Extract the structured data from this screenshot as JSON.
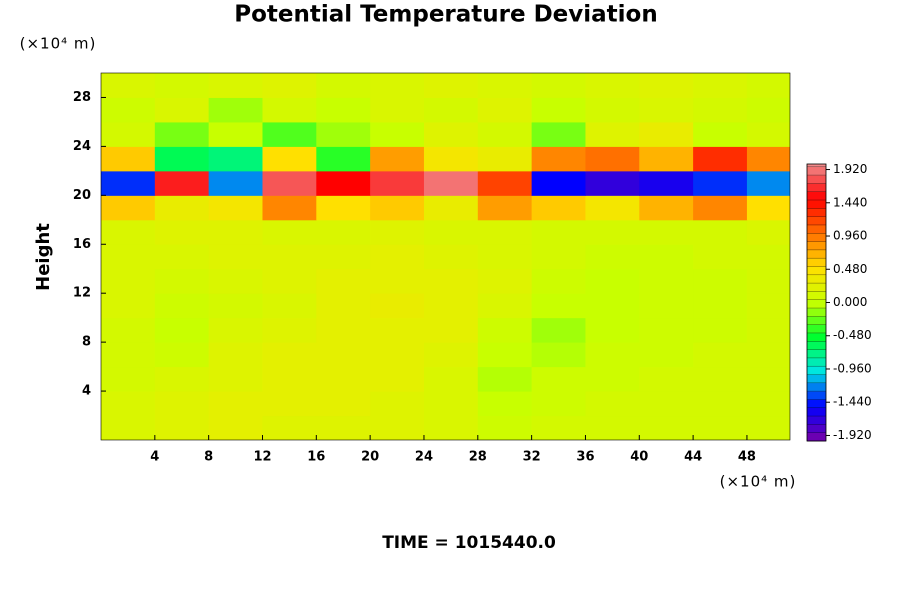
{
  "chart_data": {
    "type": "heatmap",
    "title": "Potential Temperature Deviation",
    "y_unit": "(×10⁴ m)",
    "x_unit": "(×10⁴ m)",
    "y_label": "Height",
    "footer": "TIME = 1015440.0",
    "x": [
      2,
      6,
      10,
      14,
      18,
      22,
      26,
      30,
      34,
      38,
      42,
      46,
      50
    ],
    "y": [
      1,
      3,
      5,
      7,
      9,
      11,
      13,
      15,
      17,
      19,
      21,
      23,
      25,
      27,
      29
    ],
    "z": [
      [
        0.15,
        0.2,
        0.25,
        0.2,
        0.2,
        0.2,
        0.15,
        0.05,
        0.1,
        0.1,
        0.1,
        0.1,
        0.1
      ],
      [
        0.15,
        0.2,
        0.25,
        0.25,
        0.25,
        0.2,
        0.15,
        0.0,
        0.05,
        0.1,
        0.1,
        0.1,
        0.1
      ],
      [
        0.1,
        0.15,
        0.2,
        0.25,
        0.25,
        0.25,
        0.15,
        -0.05,
        0.05,
        0.05,
        0.1,
        0.1,
        0.1
      ],
      [
        0.1,
        0.05,
        0.2,
        0.25,
        0.25,
        0.25,
        0.2,
        0.0,
        -0.05,
        0.05,
        0.05,
        0.1,
        0.1
      ],
      [
        0.1,
        0.0,
        0.15,
        0.2,
        0.25,
        0.25,
        0.25,
        0.05,
        -0.1,
        0.0,
        0.05,
        0.05,
        0.1
      ],
      [
        0.15,
        0.05,
        0.1,
        0.15,
        0.25,
        0.3,
        0.25,
        0.15,
        0.0,
        0.0,
        0.05,
        0.05,
        0.1
      ],
      [
        0.15,
        0.1,
        0.15,
        0.2,
        0.25,
        0.25,
        0.25,
        0.2,
        0.05,
        0.0,
        0.05,
        0.05,
        0.1
      ],
      [
        0.15,
        0.15,
        0.2,
        0.2,
        0.2,
        0.25,
        0.2,
        0.15,
        0.1,
        0.05,
        0.05,
        0.1,
        0.1
      ],
      [
        0.15,
        0.2,
        0.2,
        0.15,
        0.15,
        0.2,
        0.15,
        0.15,
        0.1,
        0.1,
        0.1,
        0.1,
        0.15
      ],
      [
        0.6,
        0.3,
        0.4,
        0.9,
        0.5,
        0.6,
        0.3,
        0.8,
        0.6,
        0.4,
        0.7,
        0.9,
        0.5
      ],
      [
        -1.4,
        1.6,
        -1.2,
        1.8,
        1.5,
        1.7,
        1.9,
        1.2,
        -1.5,
        -1.7,
        -1.6,
        -1.4,
        -1.2
      ],
      [
        0.6,
        -0.6,
        -0.7,
        0.5,
        -0.4,
        0.8,
        0.4,
        0.3,
        0.9,
        1.0,
        0.7,
        1.3,
        0.9
      ],
      [
        0.1,
        -0.2,
        0.0,
        -0.3,
        -0.1,
        0.0,
        0.2,
        0.1,
        -0.2,
        0.2,
        0.3,
        0.0,
        0.1
      ],
      [
        0.05,
        0.15,
        -0.1,
        0.1,
        0.0,
        0.15,
        0.1,
        0.2,
        0.0,
        0.1,
        0.15,
        0.1,
        0.05
      ],
      [
        0.15,
        0.1,
        0.15,
        0.2,
        0.1,
        0.15,
        0.2,
        0.15,
        0.1,
        0.15,
        0.2,
        0.15,
        0.1
      ]
    ],
    "cell_width": 4,
    "cell_height": 2,
    "xlim": [
      0,
      51.2
    ],
    "ylim": [
      0,
      30
    ],
    "xticks": [
      4,
      8,
      12,
      16,
      20,
      24,
      28,
      32,
      36,
      40,
      44,
      48
    ],
    "yticks": [
      4,
      8,
      12,
      16,
      20,
      24,
      28
    ],
    "zlim": [
      -2,
      2
    ],
    "zstep": 0.12,
    "zticks": [
      {
        "value": 1.92,
        "label": "1.920"
      },
      {
        "value": 1.44,
        "label": "1.440"
      },
      {
        "value": 0.96,
        "label": "0.960"
      },
      {
        "value": 0.48,
        "label": "0.480"
      },
      {
        "value": 0,
        "label": "0.000"
      },
      {
        "value": -0.48,
        "label": "-0.480"
      },
      {
        "value": -0.96,
        "label": "-0.960"
      },
      {
        "value": -1.44,
        "label": "-1.440"
      },
      {
        "value": -1.92,
        "label": "-1.920"
      }
    ],
    "colormap": [
      "#7a00a8",
      "#0000ff",
      "#00e5e5",
      "#00ff30",
      "#c8ff00",
      "#ffe000",
      "#ff7000",
      "#ff0000",
      "#f09090"
    ]
  }
}
